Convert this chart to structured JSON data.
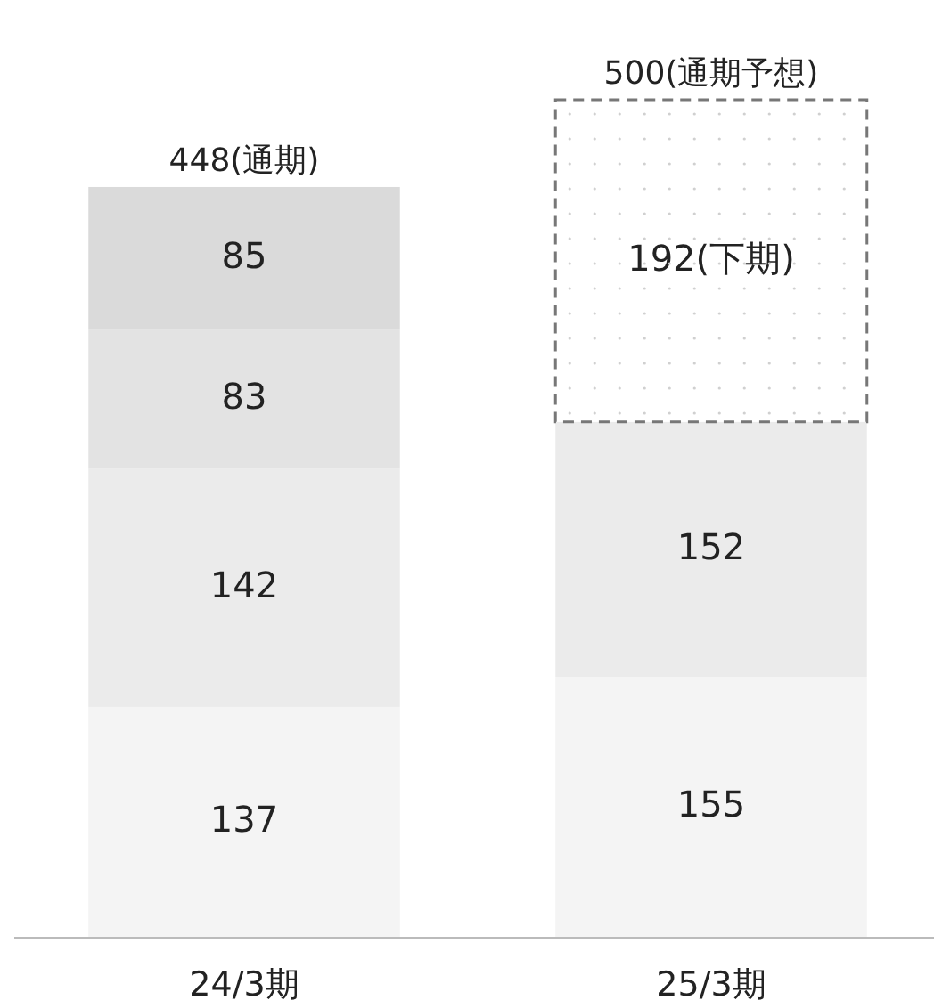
{
  "chart_data": {
    "type": "bar",
    "stacked": true,
    "categories": [
      "24/3期",
      "25/3期"
    ],
    "series": [
      {
        "color": "#f4f4f4",
        "values": [
          137,
          155
        ],
        "value_labels": [
          "137",
          "155"
        ]
      },
      {
        "color": "#ebebeb",
        "values": [
          142,
          152
        ],
        "value_labels": [
          "142",
          "152"
        ]
      },
      {
        "color": "#e3e3e3",
        "values": [
          83,
          null
        ],
        "value_labels": [
          "83",
          null
        ]
      },
      {
        "color": "#ffffff",
        "values": [
          null,
          192
        ],
        "value_labels": [
          null,
          "192(下期)"
        ],
        "line_style": "dashed"
      },
      {
        "color": "#dadada",
        "values": [
          85,
          null
        ],
        "value_labels": [
          "85",
          null
        ]
      }
    ],
    "totals": [
      "448(通期)",
      "500(通期予想)"
    ]
  }
}
